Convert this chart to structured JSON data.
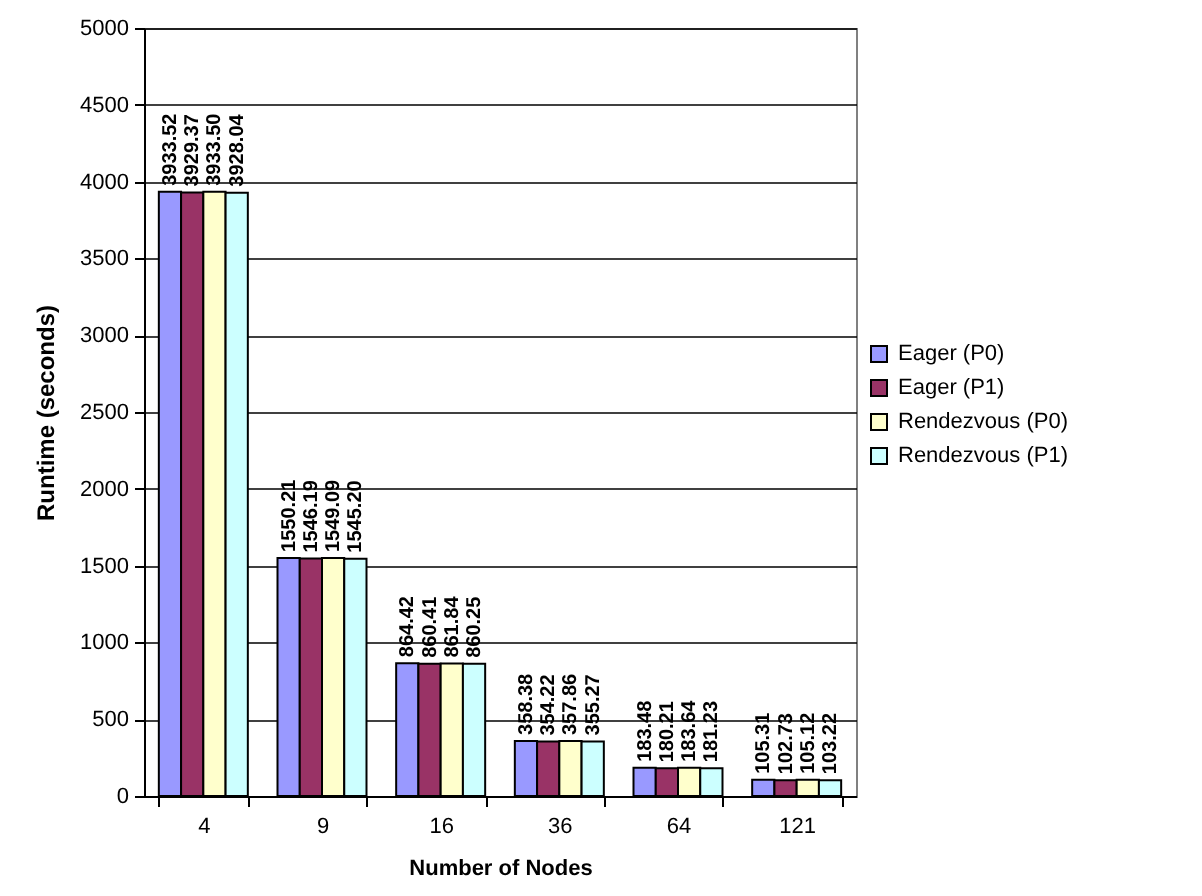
{
  "chart_data": {
    "type": "bar",
    "xlabel": "Number of Nodes",
    "ylabel": "Runtime (seconds)",
    "categories": [
      "4",
      "9",
      "16",
      "36",
      "64",
      "121"
    ],
    "series": [
      {
        "name": "Eager (P0)",
        "color": "#9999ff",
        "values": [
          3933.52,
          1550.21,
          864.42,
          358.38,
          183.48,
          105.31
        ],
        "value_labels": [
          "3933.52",
          "1550.21",
          "864.42",
          "358.38",
          "183.48",
          "105.31"
        ]
      },
      {
        "name": "Eager (P1)",
        "color": "#993366",
        "values": [
          3929.37,
          1546.19,
          860.41,
          354.22,
          180.21,
          102.73
        ],
        "value_labels": [
          "3929.37",
          "1546.19",
          "860.41",
          "354.22",
          "180.21",
          "102.73"
        ]
      },
      {
        "name": "Rendezvous (P0)",
        "color": "#ffffcc",
        "values": [
          3933.5,
          1549.09,
          861.84,
          357.86,
          183.64,
          105.12
        ],
        "value_labels": [
          "3933.50",
          "1549.09",
          "861.84",
          "357.86",
          "183.64",
          "105.12"
        ]
      },
      {
        "name": "Rendezvous (P1)",
        "color": "#ccffff",
        "values": [
          3928.04,
          1545.2,
          860.25,
          355.27,
          181.23,
          103.22
        ],
        "value_labels": [
          "3928.04",
          "1545.20",
          "860.25",
          "355.27",
          "181.23",
          "103.22"
        ]
      }
    ],
    "ylim": [
      0,
      5000
    ],
    "yticks": [
      0,
      500,
      1000,
      1500,
      2000,
      2500,
      3000,
      3500,
      4000,
      4500,
      5000
    ],
    "grid": "y",
    "legend": "right"
  }
}
